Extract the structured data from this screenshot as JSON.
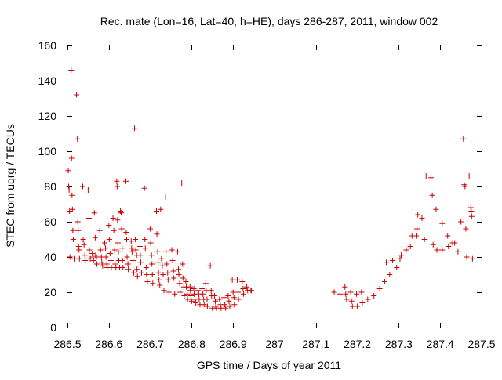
{
  "chart_data": {
    "type": "scatter",
    "title": "Rec. mate (Lon=16, Lat=40, h=HE), days 286-287, 2011, window 002",
    "xlabel": "GPS time / Days of year 2011",
    "ylabel": "STEC from uqrg / TECUs",
    "xlim": [
      286.5,
      287.5
    ],
    "ylim": [
      0,
      160
    ],
    "xticks": [
      "286.5",
      "286.6",
      "286.7",
      "286.8",
      "286.9",
      "287",
      "287.1",
      "287.2",
      "287.3",
      "287.4",
      "287.5"
    ],
    "yticks": [
      "0",
      "20",
      "40",
      "60",
      "80",
      "100",
      "120",
      "140",
      "160"
    ],
    "grid": false,
    "legend": "none",
    "marker": "plus",
    "colors": {
      "points": "#cc0000",
      "axes": "#000000"
    },
    "series": [
      {
        "points": [
          [
            286.502,
            89
          ],
          [
            286.503,
            80
          ],
          [
            286.504,
            78
          ],
          [
            286.505,
            66
          ],
          [
            286.506,
            40
          ],
          [
            286.509,
            146
          ],
          [
            286.51,
            96
          ],
          [
            286.511,
            75
          ],
          [
            286.512,
            67
          ],
          [
            286.513,
            55
          ],
          [
            286.514,
            50
          ],
          [
            286.516,
            39
          ],
          [
            286.522,
            132
          ],
          [
            286.524,
            107
          ],
          [
            286.525,
            60
          ],
          [
            286.526,
            55
          ],
          [
            286.527,
            46
          ],
          [
            286.528,
            44
          ],
          [
            286.529,
            39
          ],
          [
            286.537,
            80
          ],
          [
            286.538,
            50
          ],
          [
            286.54,
            47
          ],
          [
            286.542,
            41
          ],
          [
            286.543,
            38
          ],
          [
            286.55,
            78
          ],
          [
            286.552,
            62
          ],
          [
            286.553,
            44
          ],
          [
            286.555,
            39
          ],
          [
            286.56,
            42
          ],
          [
            286.562,
            40
          ],
          [
            286.563,
            38
          ],
          [
            286.565,
            65
          ],
          [
            286.567,
            51
          ],
          [
            286.568,
            41
          ],
          [
            286.57,
            40
          ],
          [
            286.571,
            36
          ],
          [
            286.578,
            55
          ],
          [
            286.58,
            44
          ],
          [
            286.582,
            40
          ],
          [
            286.583,
            37
          ],
          [
            286.585,
            35
          ],
          [
            286.59,
            48
          ],
          [
            286.592,
            45
          ],
          [
            286.593,
            40
          ],
          [
            286.595,
            36
          ],
          [
            286.596,
            34
          ],
          [
            286.6,
            58
          ],
          [
            286.601,
            50
          ],
          [
            286.603,
            42
          ],
          [
            286.605,
            38
          ],
          [
            286.606,
            34
          ],
          [
            286.61,
            62
          ],
          [
            286.612,
            55
          ],
          [
            286.614,
            44
          ],
          [
            286.615,
            36
          ],
          [
            286.617,
            34
          ],
          [
            286.619,
            83
          ],
          [
            286.62,
            80
          ],
          [
            286.621,
            61
          ],
          [
            286.622,
            48
          ],
          [
            286.623,
            43
          ],
          [
            286.624,
            38
          ],
          [
            286.626,
            34
          ],
          [
            286.628,
            66
          ],
          [
            286.63,
            65
          ],
          [
            286.631,
            56
          ],
          [
            286.632,
            45
          ],
          [
            286.633,
            38
          ],
          [
            286.634,
            34
          ],
          [
            286.641,
            83
          ],
          [
            286.642,
            54
          ],
          [
            286.643,
            50
          ],
          [
            286.644,
            40
          ],
          [
            286.646,
            36
          ],
          [
            286.647,
            33
          ],
          [
            286.654,
            49
          ],
          [
            286.655,
            45
          ],
          [
            286.656,
            43
          ],
          [
            286.658,
            38
          ],
          [
            286.66,
            31
          ],
          [
            286.662,
            113
          ],
          [
            286.664,
            50
          ],
          [
            286.665,
            44
          ],
          [
            286.667,
            41
          ],
          [
            286.668,
            33
          ],
          [
            286.669,
            29
          ],
          [
            286.675,
            46
          ],
          [
            286.676,
            41
          ],
          [
            286.677,
            37
          ],
          [
            286.679,
            31
          ],
          [
            286.686,
            79
          ],
          [
            286.687,
            50
          ],
          [
            286.688,
            45
          ],
          [
            286.69,
            34
          ],
          [
            286.691,
            30
          ],
          [
            286.693,
            26
          ],
          [
            286.7,
            56
          ],
          [
            286.701,
            48
          ],
          [
            286.703,
            41
          ],
          [
            286.704,
            36
          ],
          [
            286.705,
            30
          ],
          [
            286.706,
            25
          ],
          [
            286.715,
            66
          ],
          [
            286.716,
            53
          ],
          [
            286.718,
            43
          ],
          [
            286.719,
            37
          ],
          [
            286.72,
            31
          ],
          [
            286.721,
            27
          ],
          [
            286.723,
            24
          ],
          [
            286.725,
            67
          ],
          [
            286.727,
            39
          ],
          [
            286.729,
            35
          ],
          [
            286.731,
            30
          ],
          [
            286.733,
            21
          ],
          [
            286.737,
            74
          ],
          [
            286.738,
            43
          ],
          [
            286.74,
            36
          ],
          [
            286.742,
            31
          ],
          [
            286.743,
            27
          ],
          [
            286.745,
            20
          ],
          [
            286.752,
            44
          ],
          [
            286.754,
            38
          ],
          [
            286.756,
            32
          ],
          [
            286.757,
            28
          ],
          [
            286.759,
            19
          ],
          [
            286.766,
            43
          ],
          [
            286.768,
            33
          ],
          [
            286.769,
            30
          ],
          [
            286.771,
            25
          ],
          [
            286.772,
            20
          ],
          [
            286.776,
            82
          ],
          [
            286.778,
            36
          ],
          [
            286.779,
            28
          ],
          [
            286.781,
            23
          ],
          [
            286.782,
            18
          ],
          [
            286.786,
            26
          ],
          [
            286.787,
            23
          ],
          [
            286.789,
            19
          ],
          [
            286.79,
            16
          ],
          [
            286.796,
            23
          ],
          [
            286.797,
            21
          ],
          [
            286.798,
            18
          ],
          [
            286.8,
            15
          ],
          [
            286.805,
            22
          ],
          [
            286.806,
            19
          ],
          [
            286.808,
            16
          ],
          [
            286.81,
            14
          ],
          [
            286.815,
            21
          ],
          [
            286.817,
            19
          ],
          [
            286.818,
            16
          ],
          [
            286.82,
            13
          ],
          [
            286.825,
            22
          ],
          [
            286.827,
            19
          ],
          [
            286.829,
            16
          ],
          [
            286.83,
            13
          ],
          [
            286.834,
            25
          ],
          [
            286.835,
            21
          ],
          [
            286.837,
            16
          ],
          [
            286.838,
            12
          ],
          [
            286.845,
            35
          ],
          [
            286.847,
            21
          ],
          [
            286.848,
            18
          ],
          [
            286.85,
            11
          ],
          [
            286.855,
            18
          ],
          [
            286.857,
            15
          ],
          [
            286.858,
            12
          ],
          [
            286.86,
            11
          ],
          [
            286.867,
            16
          ],
          [
            286.869,
            13
          ],
          [
            286.871,
            11
          ],
          [
            286.878,
            17
          ],
          [
            286.88,
            13
          ],
          [
            286.882,
            11
          ],
          [
            286.888,
            18
          ],
          [
            286.89,
            15
          ],
          [
            286.892,
            12
          ],
          [
            286.898,
            27
          ],
          [
            286.9,
            20
          ],
          [
            286.902,
            17
          ],
          [
            286.903,
            13
          ],
          [
            286.91,
            27
          ],
          [
            286.912,
            20
          ],
          [
            286.913,
            16
          ],
          [
            286.922,
            26
          ],
          [
            286.924,
            22
          ],
          [
            286.925,
            19
          ],
          [
            286.933,
            23
          ],
          [
            286.935,
            21
          ],
          [
            286.943,
            21
          ],
          [
            286.944,
            21
          ],
          [
            287.144,
            20
          ],
          [
            287.158,
            19
          ],
          [
            287.17,
            23
          ],
          [
            287.172,
            19
          ],
          [
            287.174,
            16
          ],
          [
            287.184,
            20
          ],
          [
            287.186,
            15
          ],
          [
            287.188,
            12
          ],
          [
            287.198,
            19
          ],
          [
            287.2,
            12
          ],
          [
            287.21,
            20
          ],
          [
            287.212,
            14
          ],
          [
            287.225,
            16
          ],
          [
            287.24,
            18
          ],
          [
            287.254,
            22
          ],
          [
            287.266,
            26
          ],
          [
            287.27,
            37
          ],
          [
            287.278,
            30
          ],
          [
            287.285,
            38
          ],
          [
            287.295,
            34
          ],
          [
            287.303,
            39
          ],
          [
            287.306,
            41
          ],
          [
            287.318,
            44
          ],
          [
            287.328,
            46
          ],
          [
            287.332,
            52
          ],
          [
            287.342,
            52
          ],
          [
            287.344,
            56
          ],
          [
            287.346,
            64
          ],
          [
            287.356,
            62
          ],
          [
            287.362,
            50
          ],
          [
            287.366,
            86
          ],
          [
            287.378,
            85
          ],
          [
            287.381,
            75
          ],
          [
            287.383,
            47
          ],
          [
            287.39,
            67
          ],
          [
            287.392,
            44
          ],
          [
            287.405,
            44
          ],
          [
            287.405,
            59
          ],
          [
            287.418,
            52
          ],
          [
            287.42,
            46
          ],
          [
            287.43,
            48
          ],
          [
            287.435,
            48
          ],
          [
            287.443,
            43
          ],
          [
            287.45,
            60
          ],
          [
            287.456,
            107
          ],
          [
            287.458,
            81
          ],
          [
            287.46,
            80
          ],
          [
            287.462,
            56
          ],
          [
            287.464,
            40
          ],
          [
            287.47,
            86
          ],
          [
            287.474,
            68
          ],
          [
            287.475,
            66
          ],
          [
            287.476,
            63
          ],
          [
            287.478,
            39
          ]
        ]
      }
    ]
  }
}
